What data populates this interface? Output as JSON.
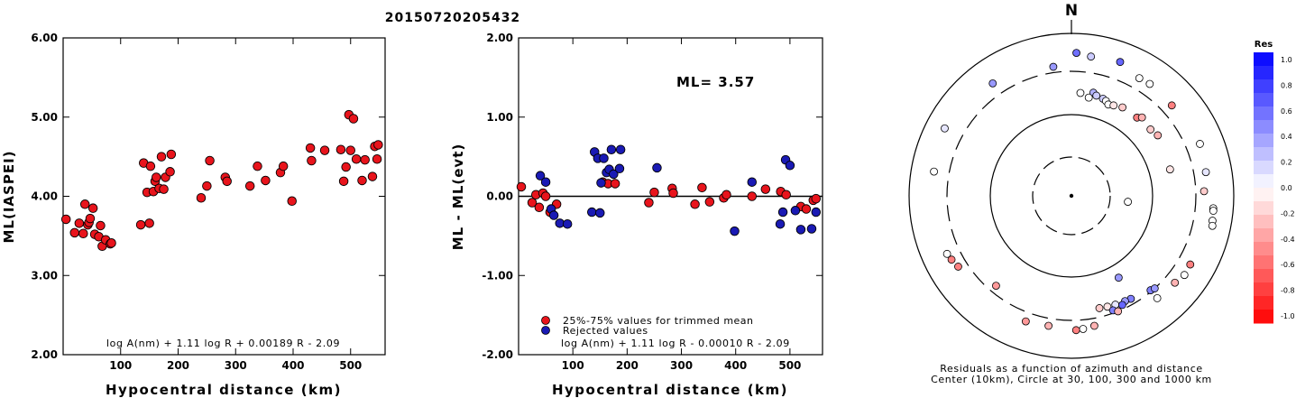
{
  "page_title": "20150720205432",
  "chart_data": [
    {
      "type": "scatter",
      "xlabel": "Hypocentral distance (km)",
      "ylabel": "ML(IASPEI)",
      "xlim": [
        0,
        560
      ],
      "ylim": [
        2.0,
        6.0
      ],
      "xticks": [
        "100",
        "200",
        "300",
        "400",
        "500"
      ],
      "yticks": [
        "2.00",
        "3.00",
        "4.00",
        "5.00",
        "6.00"
      ],
      "formula": "log A(nm) + 1.11 log R + 0.00189 R - 2.09",
      "series": [
        {
          "color": "#e8141c",
          "points": [
            [
              5,
              3.71
            ],
            [
              20,
              3.54
            ],
            [
              28,
              3.66
            ],
            [
              35,
              3.53
            ],
            [
              38,
              3.9
            ],
            [
              43,
              3.64
            ],
            [
              45,
              3.67
            ],
            [
              47,
              3.72
            ],
            [
              52,
              3.85
            ],
            [
              55,
              3.52
            ],
            [
              62,
              3.49
            ],
            [
              65,
              3.63
            ],
            [
              68,
              3.37
            ],
            [
              74,
              3.45
            ],
            [
              82,
              3.4
            ],
            [
              84,
              3.41
            ],
            [
              135,
              3.64
            ],
            [
              140,
              4.42
            ],
            [
              146,
              4.05
            ],
            [
              150,
              3.66
            ],
            [
              152,
              4.38
            ],
            [
              157,
              4.06
            ],
            [
              160,
              4.19
            ],
            [
              162,
              4.24
            ],
            [
              167,
              4.1
            ],
            [
              171,
              4.5
            ],
            [
              175,
              4.09
            ],
            [
              178,
              4.24
            ],
            [
              186,
              4.31
            ],
            [
              188,
              4.53
            ],
            [
              240,
              3.98
            ],
            [
              250,
              4.13
            ],
            [
              255,
              4.45
            ],
            [
              282,
              4.24
            ],
            [
              285,
              4.19
            ],
            [
              325,
              4.13
            ],
            [
              338,
              4.38
            ],
            [
              352,
              4.2
            ],
            [
              378,
              4.3
            ],
            [
              383,
              4.38
            ],
            [
              398,
              3.94
            ],
            [
              430,
              4.61
            ],
            [
              432,
              4.45
            ],
            [
              455,
              4.58
            ],
            [
              483,
              4.59
            ],
            [
              488,
              4.19
            ],
            [
              492,
              4.37
            ],
            [
              497,
              5.03
            ],
            [
              500,
              4.58
            ],
            [
              505,
              4.98
            ],
            [
              510,
              4.47
            ],
            [
              520,
              4.2
            ],
            [
              525,
              4.46
            ],
            [
              538,
              4.25
            ],
            [
              542,
              4.63
            ],
            [
              546,
              4.47
            ],
            [
              548,
              4.65
            ]
          ]
        }
      ]
    },
    {
      "type": "scatter",
      "xlabel": "Hypocentral distance (km)",
      "ylabel": "ML - ML(evt)",
      "xlim": [
        0,
        560
      ],
      "ylim": [
        -2.0,
        2.0
      ],
      "xticks": [
        "100",
        "200",
        "300",
        "400",
        "500"
      ],
      "yticks": [
        "-2.00",
        "-1.00",
        "0.00",
        "1.00",
        "2.00"
      ],
      "annotation": "ML= 3.57",
      "formula": "log A(nm) + 1.11 log R - 0.00010 R - 2.09",
      "series": [
        {
          "name": "25%-75% values for trimmed mean",
          "color": "#e8141c",
          "points": [
            [
              5,
              0.12
            ],
            [
              25,
              -0.08
            ],
            [
              32,
              0.02
            ],
            [
              38,
              -0.14
            ],
            [
              45,
              0.04
            ],
            [
              50,
              0.0
            ],
            [
              58,
              -0.2
            ],
            [
              70,
              -0.1
            ],
            [
              155,
              0.18
            ],
            [
              165,
              0.16
            ],
            [
              178,
              0.16
            ],
            [
              240,
              -0.08
            ],
            [
              250,
              0.05
            ],
            [
              283,
              0.1
            ],
            [
              285,
              0.04
            ],
            [
              325,
              -0.1
            ],
            [
              338,
              0.11
            ],
            [
              352,
              -0.07
            ],
            [
              378,
              -0.02
            ],
            [
              383,
              0.02
            ],
            [
              430,
              0.0
            ],
            [
              455,
              0.09
            ],
            [
              483,
              0.06
            ],
            [
              493,
              0.02
            ],
            [
              520,
              -0.13
            ],
            [
              530,
              -0.16
            ],
            [
              543,
              -0.05
            ],
            [
              548,
              -0.03
            ]
          ]
        },
        {
          "name": "Rejected values",
          "color": "#1a1ab4",
          "points": [
            [
              40,
              0.26
            ],
            [
              50,
              0.18
            ],
            [
              60,
              -0.16
            ],
            [
              65,
              -0.24
            ],
            [
              76,
              -0.34
            ],
            [
              90,
              -0.35
            ],
            [
              135,
              -0.2
            ],
            [
              140,
              0.56
            ],
            [
              146,
              0.48
            ],
            [
              150,
              -0.21
            ],
            [
              152,
              0.17
            ],
            [
              157,
              0.48
            ],
            [
              162,
              0.3
            ],
            [
              167,
              0.34
            ],
            [
              171,
              0.59
            ],
            [
              175,
              0.28
            ],
            [
              186,
              0.35
            ],
            [
              188,
              0.59
            ],
            [
              255,
              0.36
            ],
            [
              398,
              -0.44
            ],
            [
              430,
              0.18
            ],
            [
              482,
              -0.35
            ],
            [
              487,
              -0.2
            ],
            [
              492,
              0.46
            ],
            [
              500,
              0.39
            ],
            [
              510,
              -0.18
            ],
            [
              520,
              -0.42
            ],
            [
              540,
              -0.41
            ],
            [
              548,
              -0.2
            ]
          ]
        }
      ]
    },
    {
      "type": "polar-scatter",
      "north_label": "N",
      "caption_line1": "Residuals as a function of azimuth and distance",
      "caption_line2": "Center (10km), Circle at 30, 100, 300 and 1000 km",
      "colorbar_title": "Res",
      "colorbar_ticks": [
        "1.0",
        "0.8",
        "0.6",
        "0.4",
        "0.2",
        "0.0",
        "-0.2",
        "-0.4",
        "-0.6",
        "-0.8",
        "-1.0"
      ],
      "points": [
        {
          "az": 2,
          "dist": 540,
          "res": 0.56
        },
        {
          "az": 8,
          "dist": 500,
          "res": 0.2
        },
        {
          "az": 20,
          "dist": 530,
          "res": 0.6
        },
        {
          "az": 30,
          "dist": 430,
          "res": 0.0
        },
        {
          "az": 35,
          "dist": 440,
          "res": 0.0
        },
        {
          "az": -8,
          "dist": 360,
          "res": 0.4
        },
        {
          "az": -35,
          "dist": 450,
          "res": 0.4
        },
        {
          "az": -62,
          "dist": 550,
          "res": 0.1
        },
        {
          "az": -80,
          "dist": 485,
          "res": 0.0
        },
        {
          "az": 48,
          "dist": 420,
          "res": -0.5
        },
        {
          "az": 68,
          "dist": 470,
          "res": 0.0
        },
        {
          "az": 80,
          "dist": 440,
          "res": 0.1
        },
        {
          "az": 12,
          "dist": 185,
          "res": 0.3
        },
        {
          "az": 14,
          "dist": 175,
          "res": 0.2
        },
        {
          "az": 18,
          "dist": 170,
          "res": 0.2
        },
        {
          "az": 20,
          "dist": 165,
          "res": 0.0
        },
        {
          "az": 22,
          "dist": 155,
          "res": 0.0
        },
        {
          "az": 25,
          "dist": 160,
          "res": -0.1
        },
        {
          "az": 10,
          "dist": 160,
          "res": 0.0
        },
        {
          "az": 30,
          "dist": 170,
          "res": -0.2
        },
        {
          "az": 40,
          "dist": 170,
          "res": -0.5
        },
        {
          "az": 42,
          "dist": 185,
          "res": -0.3
        },
        {
          "az": 50,
          "dist": 175,
          "res": -0.2
        },
        {
          "az": 55,
          "dist": 185,
          "res": -0.3
        },
        {
          "az": 75,
          "dist": 170,
          "res": -0.1
        },
        {
          "az": 5,
          "dist": 175,
          "res": 0.0
        },
        {
          "az": 95,
          "dist": 530,
          "res": 0.0
        },
        {
          "az": 96,
          "dist": 535,
          "res": 0.0
        },
        {
          "az": 100,
          "dist": 545,
          "res": 0.0
        },
        {
          "az": 102,
          "dist": 560,
          "res": 0.0
        },
        {
          "az": 88,
          "dist": 390,
          "res": -0.2
        },
        {
          "az": 96,
          "dist": 50,
          "res": 0.0
        },
        {
          "az": 125,
          "dist": 460,
          "res": 0.0
        },
        {
          "az": 130,
          "dist": 420,
          "res": -0.3
        },
        {
          "az": 120,
          "dist": 450,
          "res": -0.5
        },
        {
          "az": 140,
          "dist": 290,
          "res": 0.5
        },
        {
          "az": 138,
          "dist": 300,
          "res": 0.4
        },
        {
          "az": 150,
          "dist": 260,
          "res": 0.5
        },
        {
          "az": 153,
          "dist": 255,
          "res": 0.4
        },
        {
          "az": 158,
          "dist": 250,
          "res": 0.1
        },
        {
          "az": 162,
          "dist": 245,
          "res": -0.1
        },
        {
          "az": 166,
          "dist": 240,
          "res": -0.2
        },
        {
          "az": 155,
          "dist": 270,
          "res": 0.6
        },
        {
          "az": 160,
          "dist": 280,
          "res": 0.5
        },
        {
          "az": 158,
          "dist": 300,
          "res": -0.3
        },
        {
          "az": 140,
          "dist": 400,
          "res": 0.0
        },
        {
          "az": 170,
          "dist": 380,
          "res": -0.3
        },
        {
          "az": 175,
          "dist": 400,
          "res": 0.0
        },
        {
          "az": 178,
          "dist": 410,
          "res": -0.5
        },
        {
          "az": 190,
          "dist": 380,
          "res": -0.3
        },
        {
          "az": 200,
          "dist": 400,
          "res": -0.4
        },
        {
          "az": 238,
          "dist": 400,
          "res": -0.5
        },
        {
          "az": 245,
          "dist": 450,
          "res": 0.0
        },
        {
          "az": 242,
          "dist": 430,
          "res": -0.5
        },
        {
          "az": 220,
          "dist": 250,
          "res": -0.4
        },
        {
          "az": 150,
          "dist": 140,
          "res": 0.4
        }
      ]
    }
  ]
}
